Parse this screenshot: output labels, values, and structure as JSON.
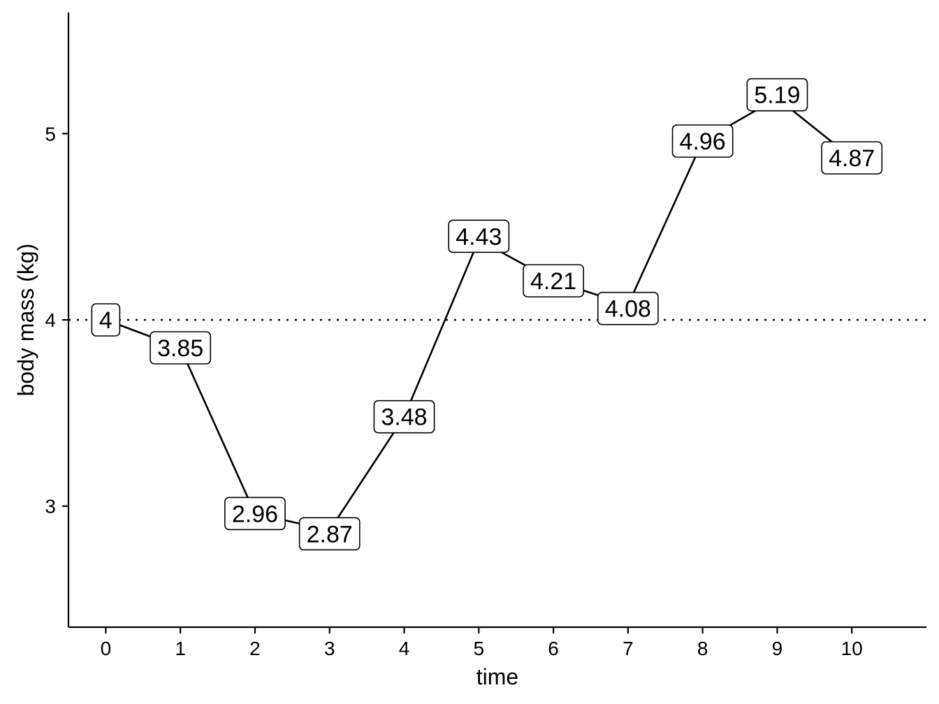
{
  "chart_data": {
    "type": "line",
    "title": "",
    "xlabel": "time",
    "ylabel": "body mass (kg)",
    "x": [
      0,
      1,
      2,
      3,
      4,
      5,
      6,
      7,
      8,
      9,
      10
    ],
    "series": [
      {
        "values": [
          4,
          3.85,
          2.96,
          2.87,
          3.48,
          4.43,
          4.21,
          4.08,
          4.96,
          5.19,
          4.87
        ],
        "labels": [
          "4",
          "3.85",
          "2.96",
          "2.87",
          "3.48",
          "4.43",
          "4.21",
          "4.08",
          "4.96",
          "5.19",
          "4.87"
        ],
        "color": "#000000"
      }
    ],
    "xlim": [
      -0.5,
      11
    ],
    "ylim": [
      2.35,
      5.65
    ],
    "xticks": [
      "0",
      "1",
      "2",
      "3",
      "4",
      "5",
      "6",
      "7",
      "8",
      "9",
      "10"
    ],
    "yticks": [
      "3",
      "4",
      "5"
    ],
    "reference_line": {
      "y": 4,
      "style": "dotted"
    },
    "grid": false,
    "legend": "none"
  }
}
